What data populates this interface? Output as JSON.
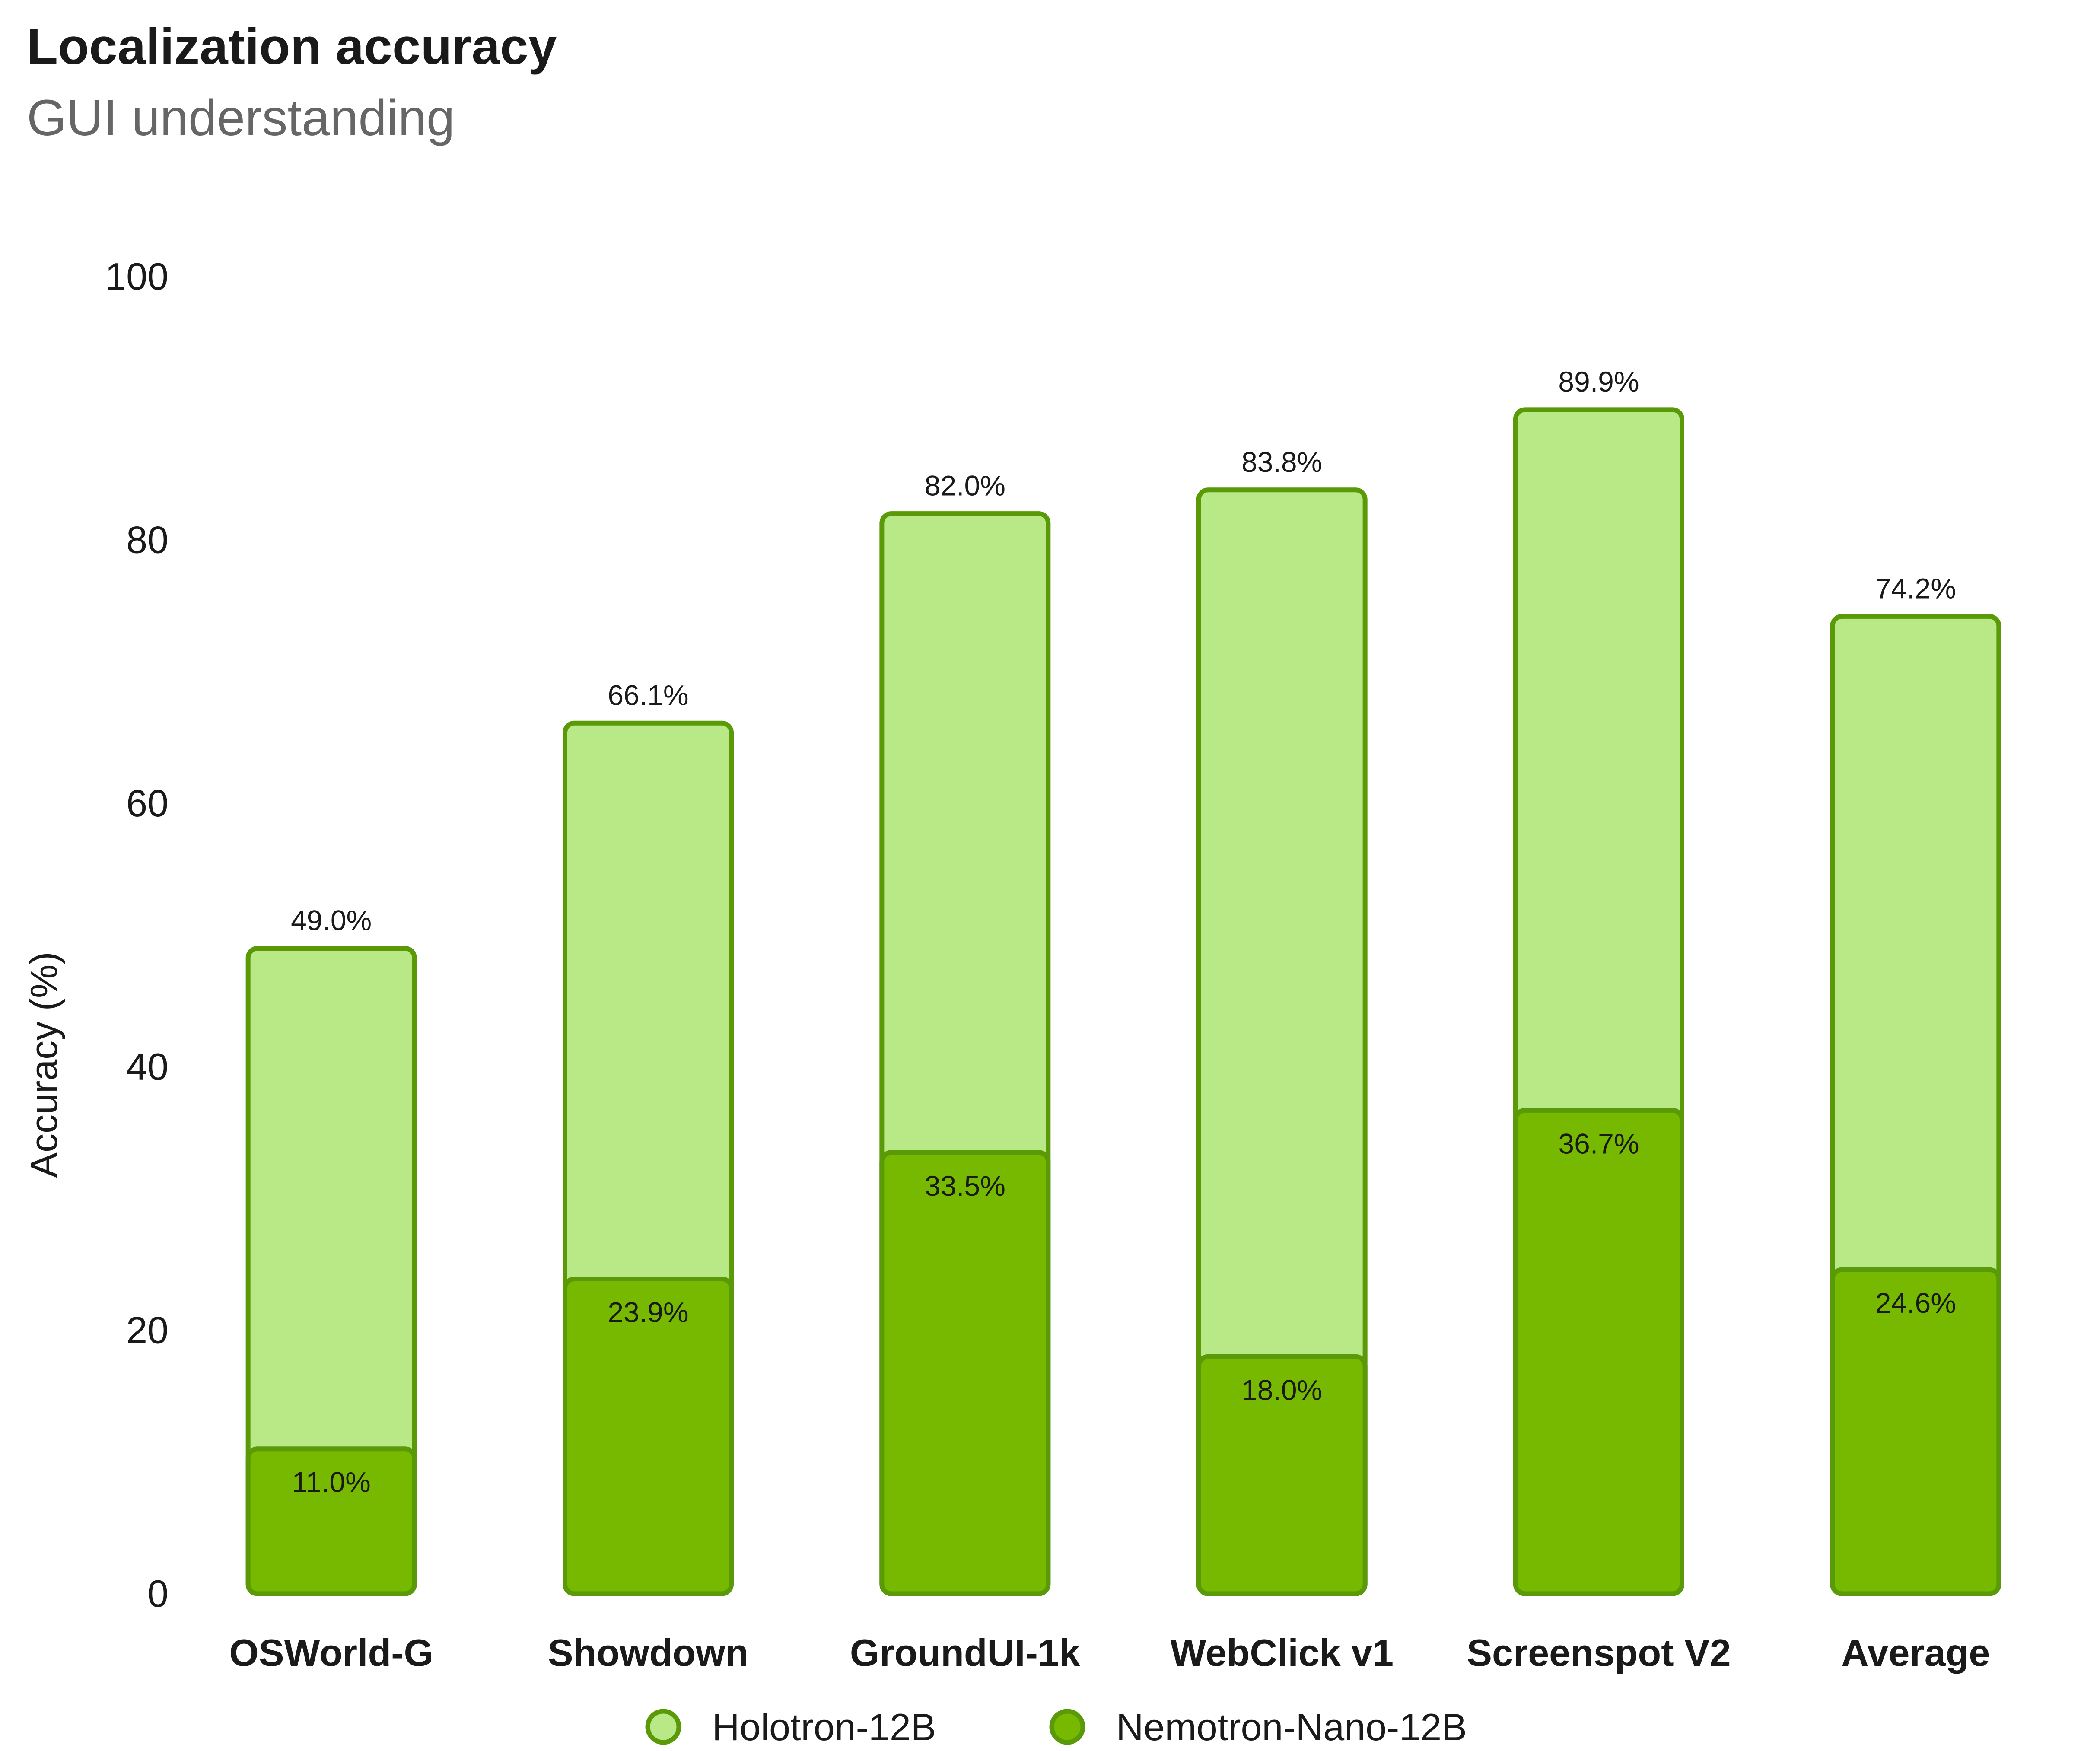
{
  "header": {
    "title": "Localization accuracy",
    "subtitle": "GUI understanding"
  },
  "chart_data": {
    "type": "bar",
    "title": "Localization accuracy",
    "subtitle": "GUI understanding",
    "xlabel": "",
    "ylabel": "Accuracy (%)",
    "ylim": [
      0,
      100
    ],
    "yticks": [
      0,
      20,
      40,
      60,
      80,
      100
    ],
    "grid": false,
    "legend": "bottom",
    "categories": [
      "OSWorld-G",
      "Showdown",
      "GroundUI-1k",
      "WebClick v1",
      "Screenspot V2",
      "Average"
    ],
    "series": [
      {
        "name": "Holotron-12B",
        "values": [
          49.0,
          66.1,
          82.0,
          83.8,
          89.9,
          74.2
        ],
        "labels": [
          "49.0%",
          "66.1%",
          "82.0%",
          "83.8%",
          "89.9%",
          "74.2%"
        ],
        "fill": "#b9e887",
        "stroke": "#5a9a08"
      },
      {
        "name": "Nemotron-Nano-12B",
        "values": [
          11.0,
          23.9,
          33.5,
          18.0,
          36.7,
          24.6
        ],
        "labels": [
          "11.0%",
          "23.9%",
          "33.5%",
          "18.0%",
          "36.7%",
          "24.6%"
        ],
        "fill": "#76b900",
        "stroke": "#5a9a08"
      }
    ]
  }
}
